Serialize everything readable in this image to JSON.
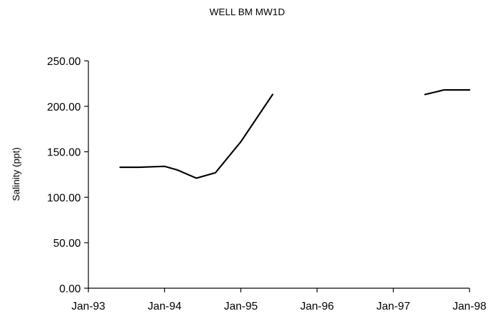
{
  "chart_data": {
    "type": "line",
    "title": "WELL BM MW1D",
    "xlabel": "",
    "ylabel": "Salinity (ppt)",
    "ylim": [
      0,
      250
    ],
    "y_ticks": [
      "0.00",
      "50.00",
      "100.00",
      "150.00",
      "200.00",
      "250.00"
    ],
    "x_ticks": [
      "Jan-93",
      "Jan-94",
      "Jan-95",
      "Jan-96",
      "Jan-97",
      "Jan-98"
    ],
    "xlim": [
      "1993-01",
      "1998-01"
    ],
    "grid": false,
    "legend": "none",
    "series": [
      {
        "segments": [
          [
            {
              "x": "1993-06",
              "y": 133
            },
            {
              "x": "1993-09",
              "y": 133
            },
            {
              "x": "1994-01",
              "y": 134
            },
            {
              "x": "1994-03",
              "y": 130
            },
            {
              "x": "1994-06",
              "y": 121
            },
            {
              "x": "1994-09",
              "y": 127
            },
            {
              "x": "1995-01",
              "y": 161
            },
            {
              "x": "1995-06",
              "y": 213
            }
          ],
          [
            {
              "x": "1997-06",
              "y": 213
            },
            {
              "x": "1997-09",
              "y": 218
            },
            {
              "x": "1998-01",
              "y": 218
            }
          ]
        ]
      }
    ]
  }
}
